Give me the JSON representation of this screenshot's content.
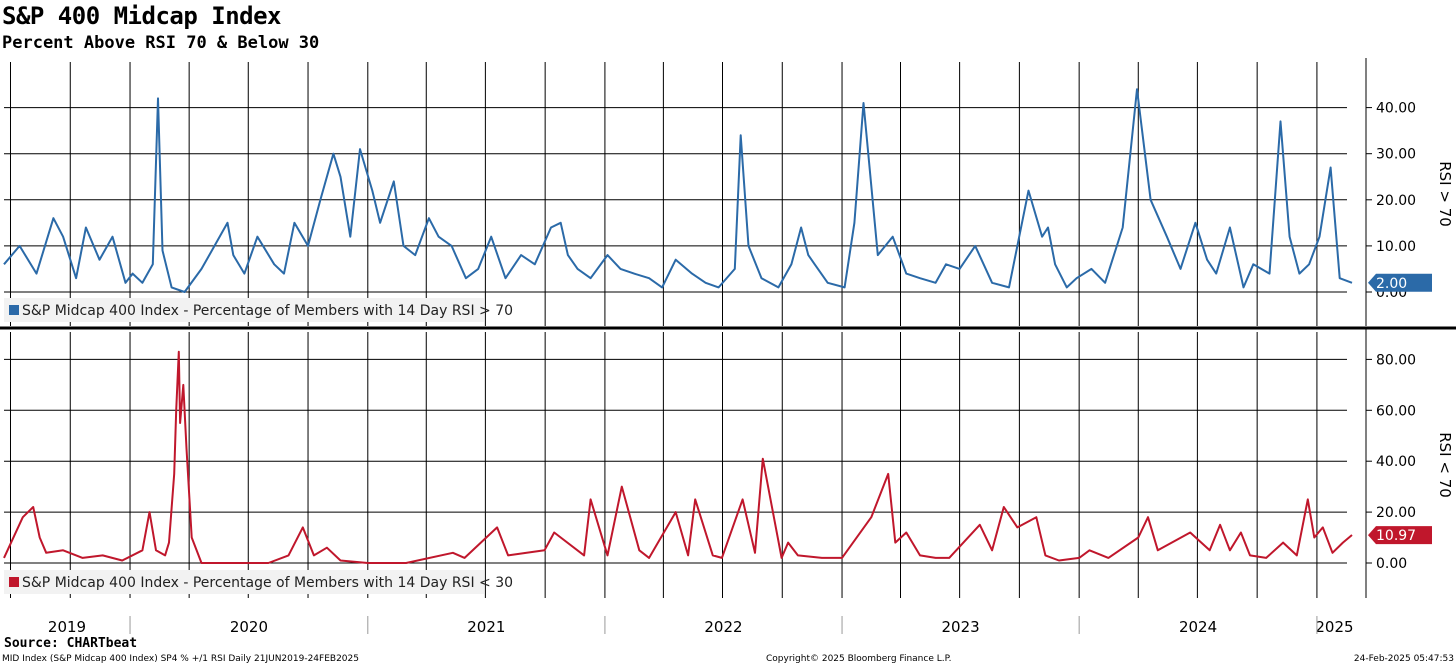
{
  "header": {
    "title": "S&P 400 Midcap Index",
    "subtitle": "Percent Above RSI 70 & Below 30"
  },
  "footer": {
    "source": "Source: CHARTbeat",
    "left": "MID Index (S&P Midcap 400 Index) SP4 % +/1 RSI  Daily 21JUN2019-24FEB2025",
    "middle": "Copyright© 2025 Bloomberg Finance L.P.",
    "right": "24-Feb-2025 05:47:53"
  },
  "chart_data": [
    {
      "type": "line",
      "ylabel": "RSI > 70",
      "ylim": [
        -6,
        50
      ],
      "y_ticks": [
        "0.00",
        "10.00",
        "20.00",
        "30.00",
        "40.00"
      ],
      "grid": true,
      "legend": {
        "placement": "bottom-left"
      },
      "x_range": [
        "2019-06-21",
        "2025-02-24"
      ],
      "color": "#2b6aa8",
      "last_value": "2.00",
      "series": [
        {
          "name": "S&P Midcap 400 Index - Percentage of Members with 14 Day RSI > 70",
          "x": [
            "2019-06-21",
            "2019-07-15",
            "2019-08-10",
            "2019-09-05",
            "2019-09-20",
            "2019-10-10",
            "2019-10-25",
            "2019-11-15",
            "2019-12-05",
            "2019-12-25",
            "2020-01-05",
            "2020-01-20",
            "2020-02-05",
            "2020-02-13",
            "2020-02-20",
            "2020-03-05",
            "2020-03-25",
            "2020-04-20",
            "2020-05-10",
            "2020-05-30",
            "2020-06-08",
            "2020-06-25",
            "2020-07-15",
            "2020-08-10",
            "2020-08-25",
            "2020-09-10",
            "2020-10-01",
            "2020-10-20",
            "2020-11-09",
            "2020-11-20",
            "2020-12-05",
            "2020-12-20",
            "2021-01-08",
            "2021-01-20",
            "2021-02-10",
            "2021-02-25",
            "2021-03-15",
            "2021-04-05",
            "2021-04-20",
            "2021-05-10",
            "2021-06-01",
            "2021-06-20",
            "2021-07-10",
            "2021-08-01",
            "2021-08-25",
            "2021-09-15",
            "2021-10-10",
            "2021-10-25",
            "2021-11-05",
            "2021-11-20",
            "2021-12-10",
            "2022-01-05",
            "2022-01-25",
            "2022-02-15",
            "2022-03-10",
            "2022-03-30",
            "2022-04-20",
            "2022-05-15",
            "2022-06-05",
            "2022-06-25",
            "2022-07-20",
            "2022-07-29",
            "2022-08-10",
            "2022-08-30",
            "2022-09-25",
            "2022-10-15",
            "2022-10-30",
            "2022-11-10",
            "2022-11-20",
            "2022-12-10",
            "2023-01-05",
            "2023-01-20",
            "2023-02-03",
            "2023-02-25",
            "2023-03-20",
            "2023-04-10",
            "2023-05-01",
            "2023-05-25",
            "2023-06-10",
            "2023-07-01",
            "2023-07-25",
            "2023-08-20",
            "2023-09-15",
            "2023-10-15",
            "2023-11-05",
            "2023-11-14",
            "2023-11-25",
            "2023-12-13",
            "2023-12-28",
            "2024-01-20",
            "2024-02-10",
            "2024-03-08",
            "2024-03-30",
            "2024-04-20",
            "2024-05-15",
            "2024-06-05",
            "2024-06-28",
            "2024-07-16",
            "2024-07-30",
            "2024-08-20",
            "2024-09-10",
            "2024-09-25",
            "2024-10-20",
            "2024-11-06",
            "2024-11-20",
            "2024-12-05",
            "2024-12-20",
            "2025-01-05",
            "2025-01-22",
            "2025-02-05",
            "2025-02-24"
          ],
          "values": [
            6,
            10,
            4,
            16,
            12,
            3,
            14,
            7,
            12,
            2,
            4,
            2,
            6,
            42,
            9,
            1,
            0,
            5,
            10,
            15,
            8,
            4,
            12,
            6,
            4,
            15,
            10,
            20,
            30,
            25,
            12,
            31,
            22,
            15,
            24,
            10,
            8,
            16,
            12,
            10,
            3,
            5,
            12,
            3,
            8,
            6,
            14,
            15,
            8,
            5,
            3,
            8,
            5,
            4,
            3,
            1,
            7,
            4,
            2,
            1,
            5,
            34,
            10,
            3,
            1,
            6,
            14,
            8,
            6,
            2,
            1,
            15,
            41,
            8,
            12,
            4,
            3,
            2,
            6,
            5,
            10,
            2,
            1,
            22,
            12,
            14,
            6,
            1,
            3,
            5,
            2,
            14,
            44,
            20,
            12,
            5,
            15,
            7,
            4,
            14,
            1,
            6,
            4,
            37,
            12,
            4,
            6,
            12,
            27,
            3,
            2
          ]
        }
      ]
    },
    {
      "type": "line",
      "ylabel": "RSI < 70",
      "ylim": [
        -12,
        92
      ],
      "y_ticks": [
        "0.00",
        "20.00",
        "40.00",
        "60.00",
        "80.00"
      ],
      "grid": true,
      "legend": {
        "placement": "bottom-left"
      },
      "x_range": [
        "2019-06-21",
        "2025-02-24"
      ],
      "color": "#c0172c",
      "last_value": "10.97",
      "series": [
        {
          "name": "S&P Midcap 400 Index - Percentage of Members with 14 Day RSI < 30",
          "x": [
            "2019-06-21",
            "2019-07-20",
            "2019-08-05",
            "2019-08-15",
            "2019-08-25",
            "2019-09-20",
            "2019-10-20",
            "2019-11-20",
            "2019-12-20",
            "2020-01-20",
            "2020-01-31",
            "2020-02-10",
            "2020-02-24",
            "2020-03-01",
            "2020-03-09",
            "2020-03-12",
            "2020-03-16",
            "2020-03-18",
            "2020-03-23",
            "2020-03-28",
            "2020-04-05",
            "2020-04-20",
            "2020-06-01",
            "2020-08-01",
            "2020-09-01",
            "2020-09-23",
            "2020-10-10",
            "2020-10-30",
            "2020-11-20",
            "2021-01-01",
            "2021-03-01",
            "2021-05-12",
            "2021-05-30",
            "2021-07-19",
            "2021-08-05",
            "2021-09-30",
            "2021-10-15",
            "2021-11-30",
            "2021-12-10",
            "2022-01-05",
            "2022-01-27",
            "2022-02-23",
            "2022-03-10",
            "2022-04-20",
            "2022-05-09",
            "2022-05-20",
            "2022-06-16",
            "2022-06-30",
            "2022-08-01",
            "2022-08-20",
            "2022-09-01",
            "2022-09-30",
            "2022-10-10",
            "2022-10-25",
            "2022-12-01",
            "2023-01-01",
            "2023-02-15",
            "2023-03-13",
            "2023-03-24",
            "2023-04-10",
            "2023-05-01",
            "2023-05-25",
            "2023-06-15",
            "2023-08-01",
            "2023-08-20",
            "2023-09-07",
            "2023-09-28",
            "2023-10-27",
            "2023-11-10",
            "2023-12-01",
            "2024-01-01",
            "2024-01-17",
            "2024-02-15",
            "2024-04-01",
            "2024-04-16",
            "2024-05-01",
            "2024-06-20",
            "2024-07-20",
            "2024-08-05",
            "2024-08-20",
            "2024-09-06",
            "2024-09-20",
            "2024-10-15",
            "2024-11-10",
            "2024-12-01",
            "2024-12-18",
            "2024-12-28",
            "2025-01-10",
            "2025-01-25",
            "2025-02-10",
            "2025-02-24"
          ],
          "values": [
            2,
            18,
            22,
            10,
            4,
            5,
            2,
            3,
            1,
            5,
            20,
            5,
            3,
            8,
            35,
            60,
            83,
            55,
            70,
            45,
            10,
            0,
            0,
            0,
            3,
            14,
            3,
            6,
            1,
            0,
            0,
            4,
            2,
            14,
            3,
            5,
            12,
            3,
            25,
            3,
            30,
            5,
            2,
            20,
            3,
            25,
            3,
            2,
            25,
            4,
            41,
            2,
            8,
            3,
            2,
            2,
            18,
            35,
            8,
            12,
            3,
            2,
            2,
            15,
            5,
            22,
            14,
            18,
            3,
            1,
            2,
            5,
            2,
            10,
            18,
            5,
            12,
            5,
            15,
            5,
            12,
            3,
            2,
            8,
            3,
            25,
            10,
            14,
            4,
            8,
            11
          ]
        }
      ]
    }
  ],
  "x_axis": {
    "years": [
      "2019",
      "2020",
      "2021",
      "2022",
      "2023",
      "2024",
      "2025"
    ]
  }
}
